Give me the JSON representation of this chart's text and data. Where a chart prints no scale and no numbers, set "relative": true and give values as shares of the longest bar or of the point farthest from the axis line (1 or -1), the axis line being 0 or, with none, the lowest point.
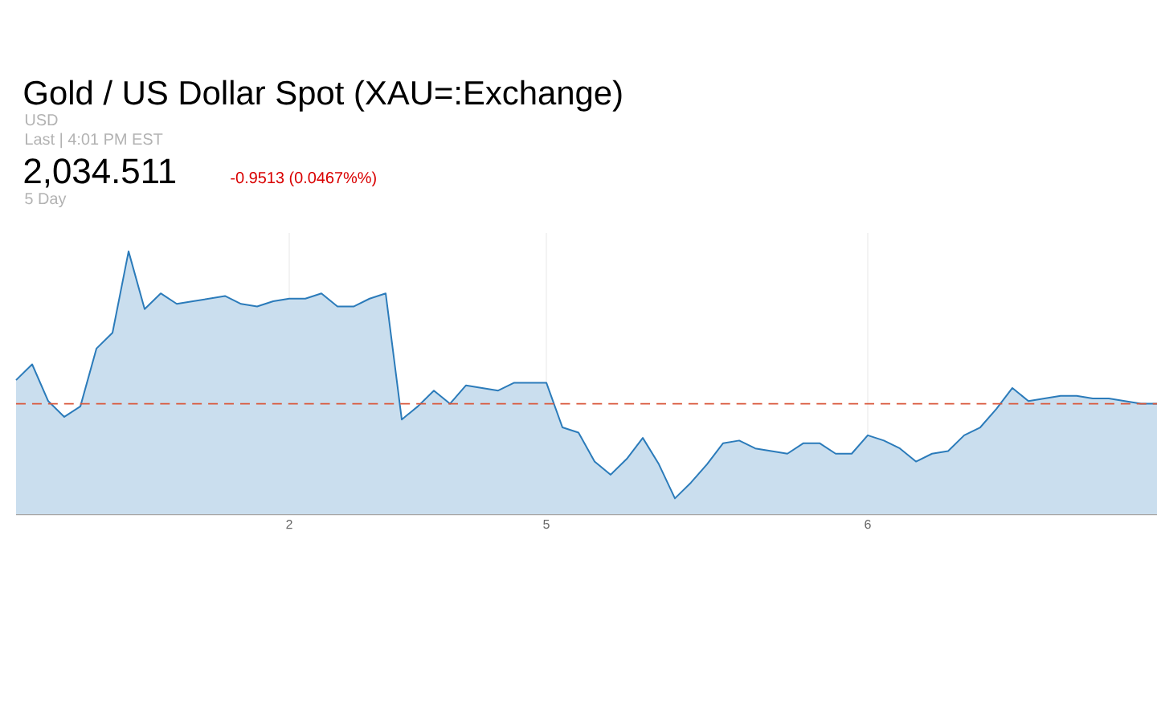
{
  "chart_data": {
    "type": "area",
    "title": "Gold / US Dollar Spot (XAU=:Exchange)",
    "annotations": [
      "USD",
      "Last | 4:01 PM EST",
      "2,034.511",
      "-0.9513 (0.0467%%)",
      "5 Day"
    ],
    "relative": true,
    "categories": [
      null,
      null,
      null,
      null,
      null,
      null,
      null,
      null,
      null,
      null,
      null,
      null,
      null,
      null,
      null,
      null,
      null,
      "2",
      null,
      null,
      null,
      null,
      null,
      null,
      null,
      null,
      null,
      null,
      null,
      null,
      null,
      null,
      null,
      "5",
      null,
      null,
      null,
      null,
      null,
      null,
      null,
      null,
      null,
      null,
      null,
      null,
      null,
      null,
      null,
      null,
      null,
      null,
      null,
      "6",
      null,
      null,
      null,
      null,
      null,
      null,
      null,
      null,
      null,
      null,
      null,
      null,
      null,
      null,
      null,
      null,
      null,
      null
    ],
    "grid": "x",
    "series": [
      {
        "color": "#2b7bba",
        "values": [
          0.51,
          0.57,
          0.43,
          0.37,
          0.41,
          0.63,
          0.69,
          1.0,
          0.78,
          0.84,
          0.8,
          0.81,
          0.82,
          0.83,
          0.8,
          0.79,
          0.81,
          0.82,
          0.82,
          0.84,
          0.79,
          0.79,
          0.82,
          0.84,
          0.36,
          0.41,
          0.47,
          0.42,
          0.49,
          0.48,
          0.47,
          0.5,
          0.5,
          0.5,
          0.33,
          0.31,
          0.2,
          0.15,
          0.21,
          0.29,
          0.19,
          0.06,
          0.12,
          0.19,
          0.27,
          0.28,
          0.25,
          0.24,
          0.23,
          0.27,
          0.27,
          0.23,
          0.23,
          0.3,
          0.28,
          0.25,
          0.2,
          0.23,
          0.24,
          0.3,
          0.33,
          0.4,
          0.48,
          0.43,
          0.44,
          0.45,
          0.45,
          0.44,
          0.44,
          0.43,
          0.42,
          0.42
        ]
      }
    ],
    "ref_lines": [
      {
        "axis": "y",
        "value": 0.42,
        "color": "#d9573a",
        "line_style": "dashed"
      }
    ]
  }
}
